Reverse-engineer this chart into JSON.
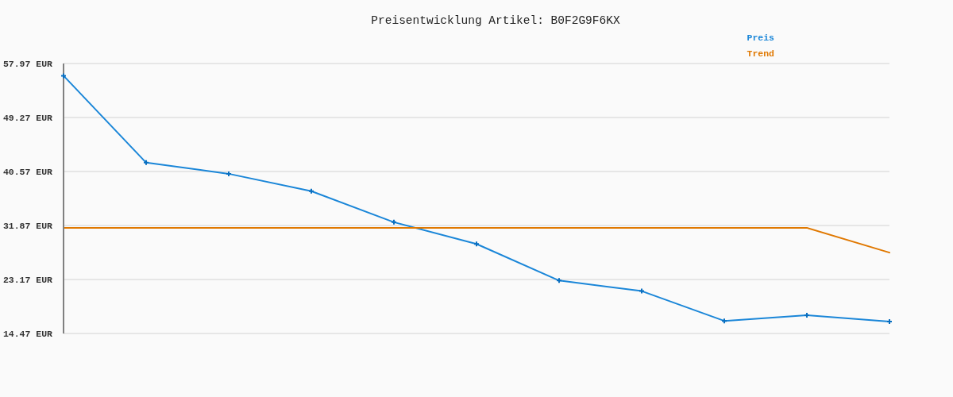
{
  "chart_data": {
    "type": "line",
    "title": "Preisentwicklung Artikel: B0F2G9F6KX",
    "categories": [
      null,
      null,
      null,
      null,
      null,
      null,
      null,
      null,
      null,
      null,
      null
    ],
    "series": [
      {
        "name": "Preis",
        "color": "#1a86d8",
        "marker": "cross",
        "values": [
          56.0,
          42.0,
          40.2,
          37.4,
          32.4,
          28.9,
          23.0,
          21.3,
          16.5,
          17.4,
          16.4
        ]
      },
      {
        "name": "Trend",
        "color": "#e07800",
        "marker": "none",
        "values": [
          31.5,
          31.5,
          31.5,
          31.5,
          31.5,
          31.5,
          31.5,
          31.5,
          31.5,
          31.5,
          27.5
        ]
      }
    ],
    "ylim": [
      14.47,
      57.97
    ],
    "yticks": [
      {
        "value": 14.47,
        "label": "14.47 EUR"
      },
      {
        "value": 23.17,
        "label": "23.17 EUR"
      },
      {
        "value": 31.87,
        "label": "31.87 EUR"
      },
      {
        "value": 40.57,
        "label": "40.57 EUR"
      },
      {
        "value": 49.27,
        "label": "49.27 EUR"
      },
      {
        "value": 57.97,
        "label": "57.97 EUR"
      }
    ],
    "grid": "y",
    "legend": "top right",
    "tick_labels": "y"
  }
}
